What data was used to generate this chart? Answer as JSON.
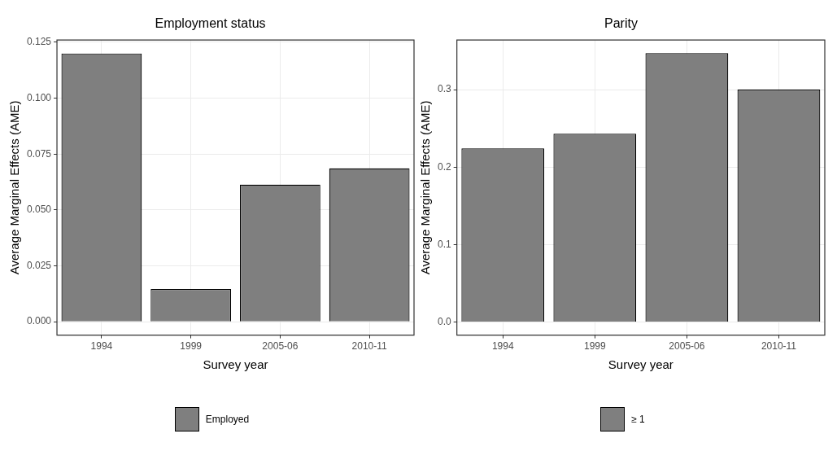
{
  "chart_data": [
    {
      "type": "bar",
      "title": "Employment status",
      "xlabel": "Survey year",
      "ylabel": "Average Marginal Effects (AME)",
      "categories": [
        "1994",
        "1999",
        "2005-06",
        "2010-11"
      ],
      "series": [
        {
          "name": "Employed",
          "color": "#7f7f7f",
          "values": [
            0.12,
            0.0146,
            0.0613,
            0.0686
          ]
        }
      ],
      "ylim": [
        -0.006,
        0.126
      ],
      "yticks": [
        {
          "value": 0,
          "label": "0.000"
        },
        0.025,
        {
          "value": 0.05,
          "label": "0.050"
        },
        0.075,
        {
          "value": 0.1,
          "label": "0.100"
        },
        0.125
      ],
      "grid": true,
      "legend": "bottom"
    },
    {
      "type": "bar",
      "title": "Parity",
      "xlabel": "Survey year",
      "ylabel": "Average Marginal Effects (AME)",
      "categories": [
        "1994",
        "1999",
        "2005-06",
        "2010-11"
      ],
      "series": [
        {
          "name": "≥ 1",
          "color": "#7f7f7f",
          "values": [
            0.224,
            0.243,
            0.347,
            0.3
          ]
        }
      ],
      "ylim": [
        -0.017,
        0.364
      ],
      "yticks": [
        {
          "value": 0,
          "label": "0.0"
        },
        0.1,
        0.2,
        0.3
      ],
      "grid": true,
      "legend": "bottom"
    }
  ]
}
